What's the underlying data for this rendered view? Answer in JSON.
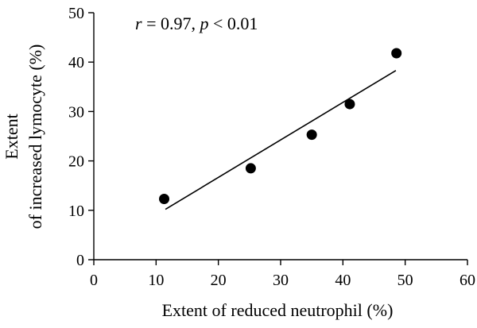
{
  "chart_data": {
    "type": "scatter",
    "title": "",
    "xlabel": "Extent of reduced neutrophil (%)",
    "ylabel_line1": "Extent",
    "ylabel_line2": "of increased lymocyte (%)",
    "xlim": [
      0,
      60
    ],
    "ylim": [
      0,
      50
    ],
    "x_ticks": [
      "0",
      "10",
      "20",
      "30",
      "40",
      "50",
      "60"
    ],
    "y_ticks": [
      "0",
      "10",
      "20",
      "30",
      "40",
      "50"
    ],
    "grid": false,
    "series": [
      {
        "x": [
          11.3,
          25.2,
          35.0,
          41.1,
          48.6
        ],
        "y": [
          12.3,
          18.5,
          25.3,
          31.5,
          41.8
        ]
      }
    ],
    "fit_line": {
      "x": [
        11.5,
        48.5
      ],
      "y": [
        10.2,
        38.3
      ]
    },
    "annotation": {
      "r_symbol": "r",
      "r_value": " = 0.97, ",
      "p_symbol": "p",
      "p_value": " < 0.01"
    }
  }
}
